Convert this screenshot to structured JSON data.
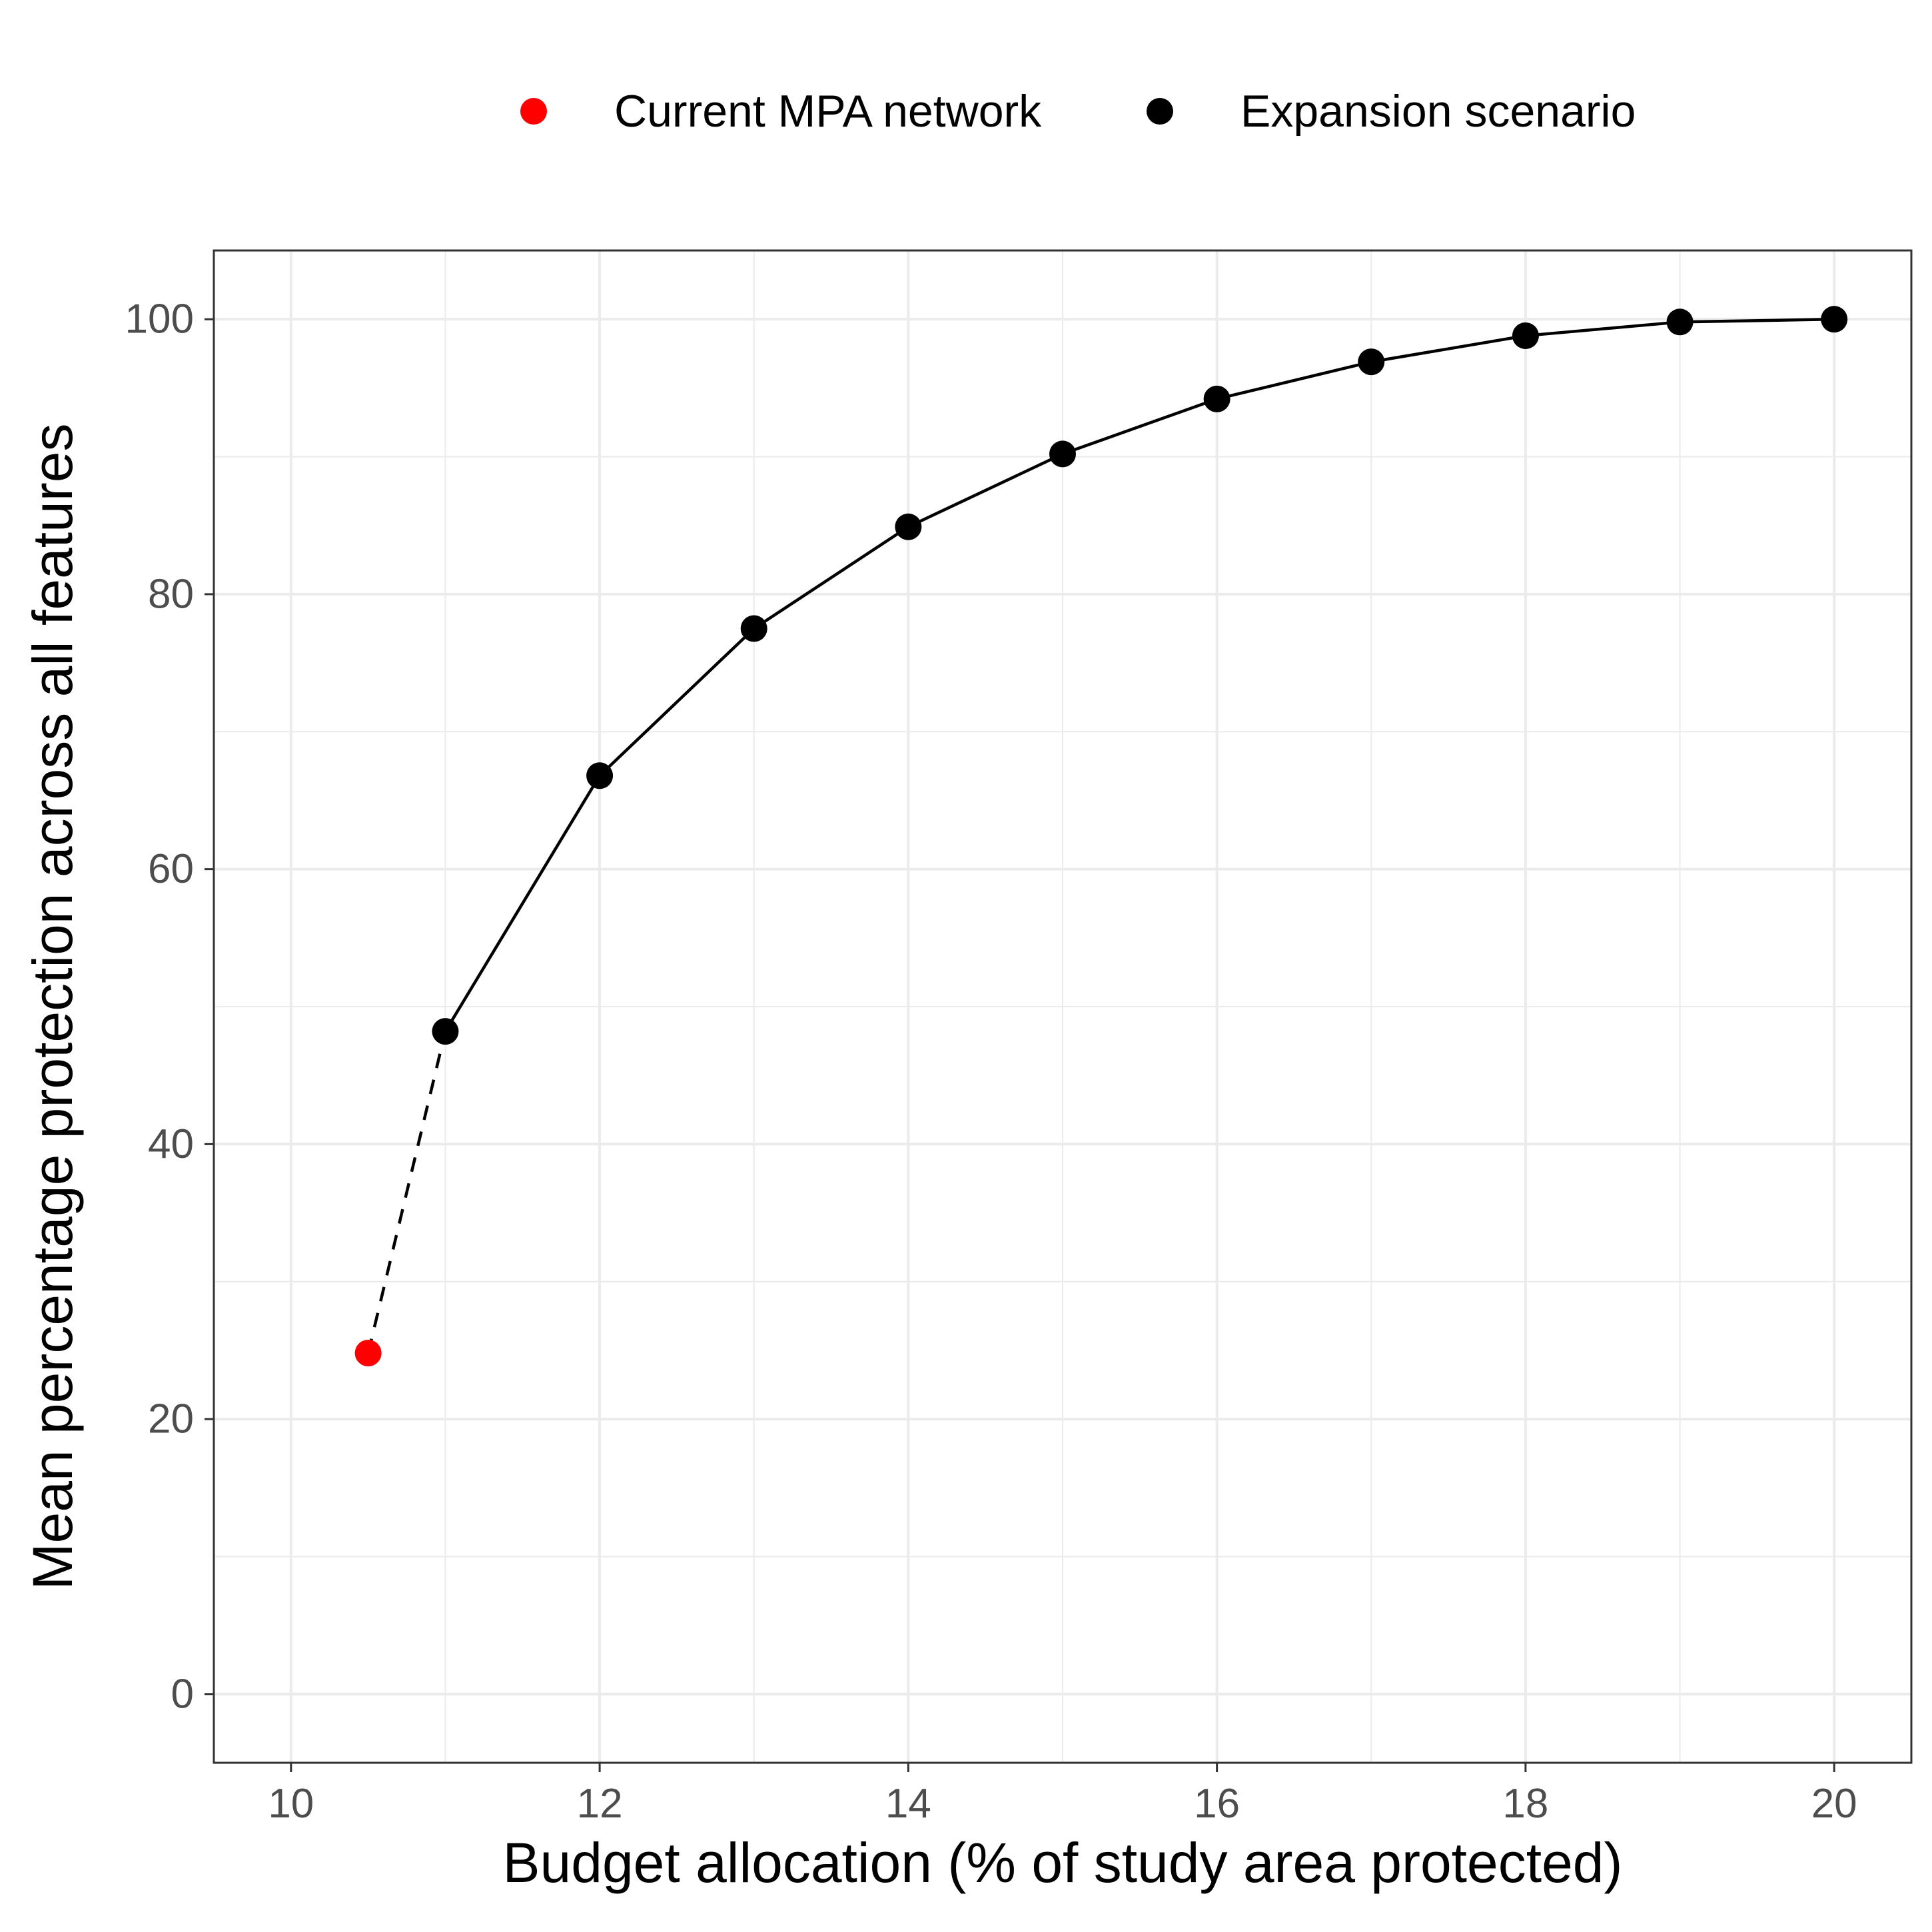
{
  "chart_data": {
    "type": "line",
    "xlabel": "Budget allocation (% of study area protected)",
    "ylabel": "Mean percentage protection across all features",
    "xlim": [
      9.5,
      20.5
    ],
    "ylim": [
      -5,
      105
    ],
    "x_ticks": [
      10,
      12,
      14,
      16,
      18,
      20
    ],
    "y_ticks": [
      0,
      20,
      40,
      60,
      80,
      100
    ],
    "x_tick_labels": [
      "10",
      "12",
      "14",
      "16",
      "18",
      "20"
    ],
    "y_tick_labels": [
      "0",
      "20",
      "40",
      "60",
      "80",
      "100"
    ],
    "grid": true,
    "legend_position": "top",
    "series": [
      {
        "name": "Current MPA network",
        "color": "#ff0000",
        "points": [
          {
            "x": 10.5,
            "y": 24.8
          }
        ]
      },
      {
        "name": "Expansion scenario",
        "color": "#000000",
        "points": [
          {
            "x": 11,
            "y": 48.2
          },
          {
            "x": 12,
            "y": 66.8
          },
          {
            "x": 13,
            "y": 77.5
          },
          {
            "x": 14,
            "y": 84.9
          },
          {
            "x": 15,
            "y": 90.2
          },
          {
            "x": 16,
            "y": 94.2
          },
          {
            "x": 17,
            "y": 96.9
          },
          {
            "x": 18,
            "y": 98.8
          },
          {
            "x": 19,
            "y": 99.8
          },
          {
            "x": 20,
            "y": 100.0
          }
        ]
      }
    ],
    "connector": {
      "style": "dashed",
      "from_series": 0,
      "to_series": 1
    }
  }
}
